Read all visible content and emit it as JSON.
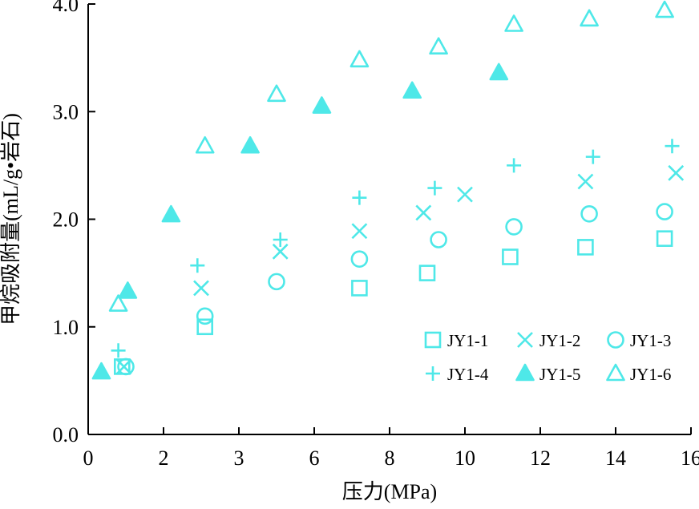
{
  "chart_data": {
    "type": "scatter",
    "xlabel": "压力(MPa)",
    "ylabel": "甲烷吸附量(mL/g•岩石)",
    "xlim": [
      0,
      16
    ],
    "ylim": [
      0,
      4
    ],
    "x_ticks": [
      "0",
      "2",
      "3",
      "6",
      "8",
      "10",
      "12",
      "14",
      "16"
    ],
    "y_ticks": [
      "0.0",
      "1.0",
      "2.0",
      "3.0",
      "4.0"
    ],
    "marker_color": "#4ee8e8",
    "legend_position": "lower-right",
    "series": [
      {
        "name": "JY1-1",
        "marker": "square",
        "points": [
          [
            0.9,
            0.63
          ],
          [
            3.1,
            1.0
          ],
          [
            7.2,
            1.36
          ],
          [
            9.0,
            1.5
          ],
          [
            11.2,
            1.65
          ],
          [
            13.2,
            1.74
          ],
          [
            15.3,
            1.82
          ]
        ]
      },
      {
        "name": "JY1-2",
        "marker": "x",
        "points": [
          [
            0.95,
            0.63
          ],
          [
            3.0,
            1.36
          ],
          [
            5.1,
            1.7
          ],
          [
            7.2,
            1.89
          ],
          [
            8.9,
            2.06
          ],
          [
            10.0,
            2.23
          ],
          [
            13.2,
            2.35
          ],
          [
            15.6,
            2.43
          ]
        ]
      },
      {
        "name": "JY1-3",
        "marker": "circle",
        "points": [
          [
            1.0,
            0.63
          ],
          [
            3.1,
            1.1
          ],
          [
            5.0,
            1.42
          ],
          [
            7.2,
            1.63
          ],
          [
            9.3,
            1.81
          ],
          [
            11.3,
            1.93
          ],
          [
            13.3,
            2.05
          ],
          [
            15.3,
            2.07
          ]
        ]
      },
      {
        "name": "JY1-4",
        "marker": "plus",
        "points": [
          [
            0.8,
            0.78
          ],
          [
            2.9,
            1.57
          ],
          [
            5.1,
            1.81
          ],
          [
            7.2,
            2.2
          ],
          [
            9.2,
            2.29
          ],
          [
            11.3,
            2.5
          ],
          [
            13.4,
            2.58
          ],
          [
            15.5,
            2.68
          ]
        ]
      },
      {
        "name": "JY1-5",
        "marker": "filled-triangle",
        "points": [
          [
            0.35,
            0.58
          ],
          [
            1.05,
            1.33
          ],
          [
            2.2,
            2.04
          ],
          [
            4.3,
            2.68
          ],
          [
            6.2,
            3.05
          ],
          [
            8.6,
            3.19
          ],
          [
            10.9,
            3.36
          ]
        ]
      },
      {
        "name": "JY1-6",
        "marker": "triangle",
        "points": [
          [
            0.8,
            1.21
          ],
          [
            3.1,
            2.68
          ],
          [
            5.0,
            3.16
          ],
          [
            7.2,
            3.48
          ],
          [
            9.3,
            3.6
          ],
          [
            11.3,
            3.81
          ],
          [
            13.3,
            3.86
          ],
          [
            15.3,
            3.94
          ]
        ]
      }
    ]
  }
}
